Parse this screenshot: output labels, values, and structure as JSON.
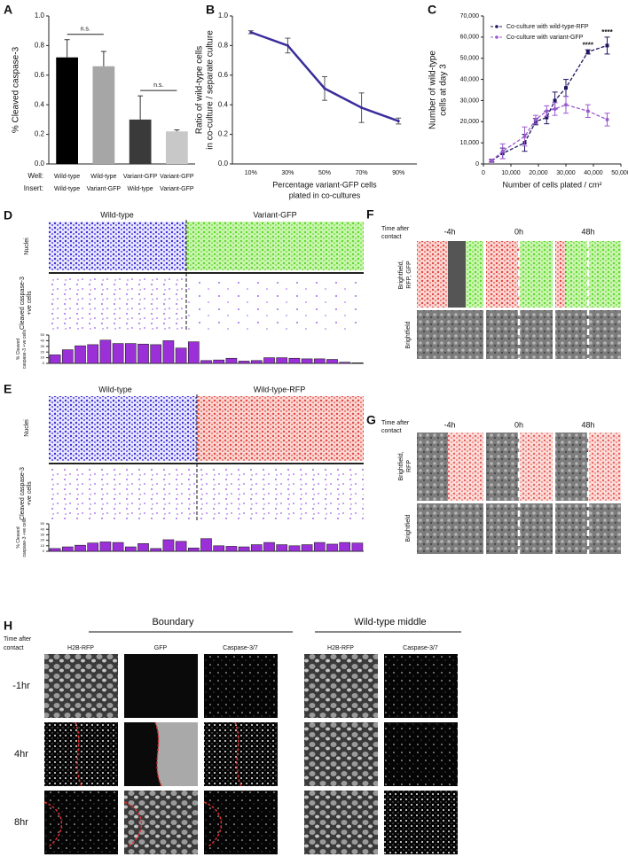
{
  "chart_data": [
    {
      "type": "bar",
      "panel": "A",
      "ylabel": [
        "% Cleaved caspase-3"
      ],
      "row_labels": [
        "Well:",
        "Insert:"
      ],
      "categories": [
        "Wild-type",
        "Wild-type",
        "Variant-GFP",
        "Variant-GFP"
      ],
      "inserts": [
        "Wild-type",
        "Variant-GFP",
        "Wild-type",
        "Variant-GFP"
      ],
      "values": [
        0.72,
        0.66,
        0.3,
        0.22
      ],
      "errors": [
        0.12,
        0.1,
        0.16,
        0.01
      ],
      "colors": [
        "#000000",
        "#a6a6a6",
        "#3a3a3a",
        "#c8c8c8"
      ],
      "ylim": [
        0,
        1
      ],
      "yticks": [
        {
          "value": 0,
          "label": "0.0"
        },
        0.2,
        0.4,
        0.6,
        0.8,
        {
          "value": 1,
          "label": "1.0"
        }
      ],
      "annotations": [
        "n.s.",
        "n.s."
      ]
    },
    {
      "type": "line",
      "panel": "B",
      "ylabel": [
        "Ratio of wild-type cells",
        "in co-culture /  separate culture"
      ],
      "xlabel": [
        "Percentage variant-GFP cells",
        "plated in co-cultures"
      ],
      "categories": [
        "10%",
        "30%",
        "50%",
        "70%",
        "90%"
      ],
      "values": [
        0.89,
        0.8,
        0.51,
        0.38,
        0.29
      ],
      "errors": [
        0.01,
        0.05,
        0.08,
        0.1,
        0.02
      ],
      "color": "#3a2d9c",
      "ylim": [
        0,
        1
      ],
      "yticks": [
        {
          "value": 0,
          "label": "0.0"
        },
        0.2,
        0.4,
        0.6,
        0.8,
        {
          "value": 1,
          "label": "1.0"
        }
      ]
    },
    {
      "type": "line",
      "panel": "C",
      "ylabel": [
        "Number of wild-type",
        "cells  at day 3"
      ],
      "xlabel": [
        "Number of cells plated / cm²"
      ],
      "x": [
        3000,
        7000,
        15000,
        19000,
        23000,
        26000,
        30000,
        38000,
        45000
      ],
      "series": [
        {
          "name": "Co-culture with wild-type-RFP",
          "color": "#1e1660",
          "linestyle": "dashed",
          "values": [
            1500,
            5000,
            10000,
            20000,
            22000,
            30000,
            36000,
            53000,
            56000
          ],
          "errors": [
            500,
            2500,
            4000,
            1500,
            3000,
            4000,
            4000,
            1000,
            4000
          ]
        },
        {
          "name": "Co-culture with variant-GFP",
          "color": "#9b59d0",
          "linestyle": "dashed",
          "values": [
            1500,
            6000,
            13000,
            21000,
            25000,
            26000,
            28000,
            25000,
            21000
          ],
          "errors": [
            800,
            3500,
            4500,
            2000,
            2500,
            3000,
            4000,
            3000,
            3000
          ]
        }
      ],
      "xlim": [
        0,
        50000
      ],
      "xticks": [
        0,
        {
          "value": 10000,
          "label": "10,000"
        },
        {
          "value": 20000,
          "label": "20,000"
        },
        {
          "value": 30000,
          "label": "30,000"
        },
        {
          "value": 40000,
          "label": "40,000"
        },
        {
          "value": 50000,
          "label": "50,000"
        }
      ],
      "ylim": [
        0,
        70000
      ],
      "yticks": [
        0,
        {
          "value": 10000,
          "label": "10,000"
        },
        {
          "value": 20000,
          "label": "20,000"
        },
        {
          "value": 30000,
          "label": "30,000"
        },
        {
          "value": 40000,
          "label": "40,000"
        },
        {
          "value": 50000,
          "label": "50,000"
        },
        {
          "value": 60000,
          "label": "60,000"
        },
        {
          "value": 70000,
          "label": "70,000"
        }
      ],
      "annotations": [
        "****",
        "****"
      ],
      "legend": "upper left"
    },
    {
      "type": "bar",
      "panel": "D",
      "ylabel": [
        "% Cleaved",
        "caspase-3 +ve cells"
      ],
      "columns": [
        "Wild-type",
        "Variant-GFP"
      ],
      "rows": [
        [
          "Nuclei"
        ],
        [
          "Cleaved caspase-3",
          "+ve cells"
        ]
      ],
      "values": [
        15,
        24,
        31,
        33,
        41,
        35,
        35,
        34,
        33,
        40,
        27,
        38,
        5,
        6,
        9,
        4,
        5,
        10,
        10,
        9,
        8,
        8,
        7,
        2,
        1
      ],
      "color": "#9b30d9",
      "ylim": [
        0,
        50
      ],
      "yticks": [
        0,
        10,
        20,
        30,
        40,
        50
      ]
    },
    {
      "type": "bar",
      "panel": "E",
      "ylabel": [
        "% Cleaved",
        "caspase-3 +ve cells"
      ],
      "columns": [
        "Wild-type",
        "Wild-type-RFP"
      ],
      "rows": [
        [
          "Nuclei"
        ],
        [
          "Cleaved caspase-3",
          "+ve cells"
        ]
      ],
      "values": [
        5,
        8,
        11,
        15,
        17,
        16,
        8,
        14,
        5,
        21,
        18,
        6,
        23,
        10,
        9,
        8,
        12,
        16,
        12,
        10,
        12,
        16,
        13,
        16,
        15
      ],
      "color": "#9b30d9",
      "ylim": [
        0,
        50
      ],
      "yticks": [
        0,
        10,
        20,
        30,
        40,
        50
      ]
    }
  ],
  "image_panels": [
    {
      "panel": "F",
      "row_header": [
        "Time after",
        "contact"
      ],
      "times": [
        "-4h",
        "0h",
        "48h"
      ],
      "rows": [
        [
          "Brightfield,",
          "RFP, GFP"
        ],
        [
          "Brightfield"
        ]
      ]
    },
    {
      "panel": "G",
      "row_header": [
        "Time after",
        "contact"
      ],
      "times": [
        "-4h",
        "0h",
        "48h"
      ],
      "rows": [
        [
          "Brightfield,",
          "RFP"
        ],
        [
          "Brightfield"
        ]
      ]
    },
    {
      "panel": "H",
      "row_header": [
        "Time after",
        "contact"
      ],
      "groups": [
        "Boundary",
        "Wild-type middle"
      ],
      "columns": [
        "H2B-RFP",
        "GFP",
        "Caspase-3/7",
        "H2B-RFP",
        "Caspase-3/7"
      ],
      "times": [
        "-1hr",
        "4hr",
        "8hr"
      ]
    }
  ]
}
